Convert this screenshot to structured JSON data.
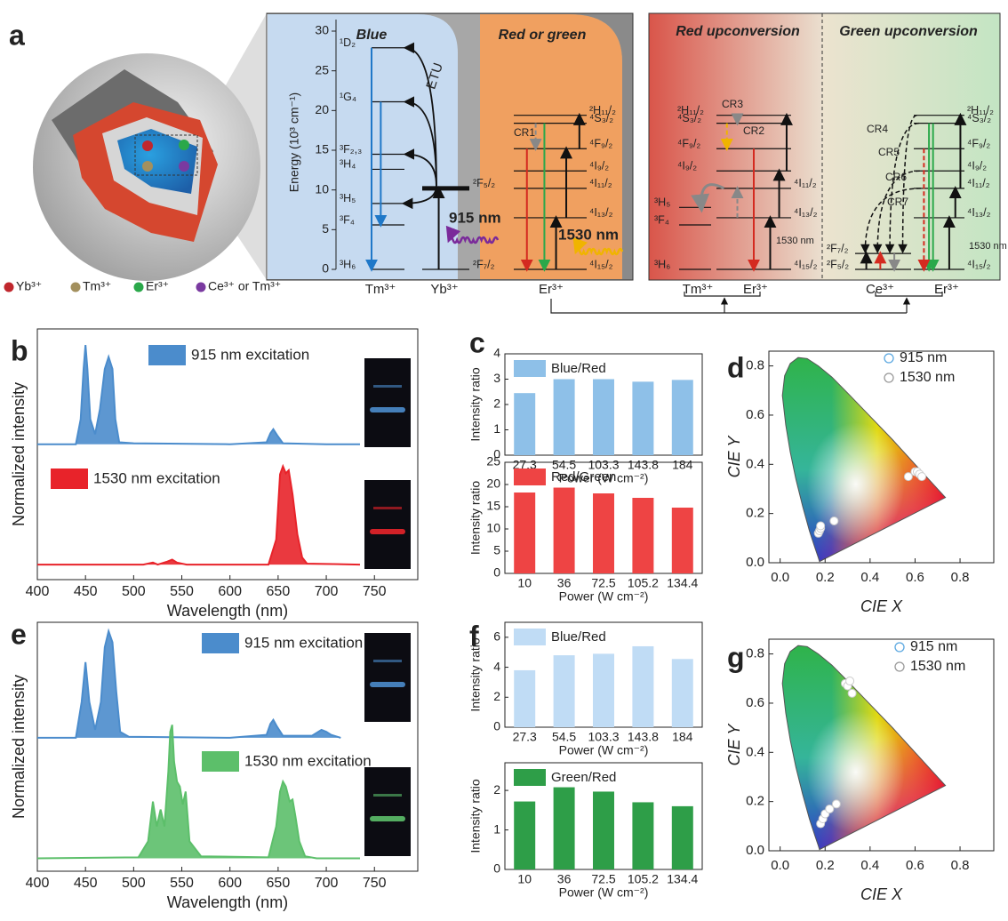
{
  "diagram": {
    "panel": "a",
    "legend": [
      {
        "label": "Yb³⁺",
        "color": "#c0272d"
      },
      {
        "label": "Tm³⁺",
        "color": "#a3905e"
      },
      {
        "label": "Er³⁺",
        "color": "#2aa84a"
      },
      {
        "label": "Ce³⁺ or Tm³⁺",
        "color": "#7a3aa0"
      }
    ],
    "energy_axis": {
      "label": "Energy (10³ cm⁻¹)",
      "ticks": [
        0,
        5,
        10,
        15,
        20,
        25,
        30
      ]
    },
    "sections": [
      {
        "title": "Blue"
      },
      {
        "title": "Red or green"
      },
      {
        "title": "Red upconversion"
      },
      {
        "title": "Green upconversion"
      }
    ],
    "ions": [
      {
        "label": "Tm³⁺",
        "levels": [
          {
            "label": "³H₆",
            "energy": 0
          },
          {
            "label": "³F₄",
            "energy": 5.6
          },
          {
            "label": "³H₅",
            "energy": 8.3
          },
          {
            "label": "³H₄",
            "energy": 12.6
          },
          {
            "label": "³F₂,₃",
            "energy": 14.5
          },
          {
            "label": "¹G₄",
            "energy": 21.1
          },
          {
            "label": "¹D₂",
            "energy": 27.9
          }
        ]
      },
      {
        "label": "Yb³⁺",
        "levels": [
          {
            "label": "²F₇/₂",
            "energy": 0
          },
          {
            "label": "²F₅/₂",
            "energy": 10.2
          }
        ]
      },
      {
        "label": "Er³⁺",
        "levels": [
          {
            "label": "⁴I₁₅/₂",
            "energy": 0
          },
          {
            "label": "⁴I₁₃/₂",
            "energy": 6.5
          },
          {
            "label": "⁴I₁₁/₂",
            "energy": 10.2
          },
          {
            "label": "⁴I₉/₂",
            "energy": 12.4
          },
          {
            "label": "⁴F₉/₂",
            "energy": 15.2
          },
          {
            "label": "⁴S₃/₂",
            "energy": 18.4
          },
          {
            "label": "²H₁₁/₂",
            "energy": 19.4
          }
        ]
      },
      {
        "label": "Tm³⁺",
        "levels": [
          {
            "label": "³H₆",
            "energy": 0
          },
          {
            "label": "³F₄",
            "energy": 5.6
          },
          {
            "label": "³H₅",
            "energy": 7.8
          }
        ]
      },
      {
        "label": "Er³⁺",
        "levels": [
          {
            "label": "⁴I₁₅/₂",
            "energy": 0
          },
          {
            "label": "⁴I₁₃/₂",
            "energy": 6.5
          },
          {
            "label": "⁴I₁₁/₂",
            "energy": 10.2
          },
          {
            "label": "⁴I₉/₂",
            "energy": 12.4
          },
          {
            "label": "⁴F₉/₂",
            "energy": 15.2
          },
          {
            "label": "⁴S₃/₂",
            "energy": 18.4
          },
          {
            "label": "²H₁₁/₂",
            "energy": 19.4
          }
        ]
      },
      {
        "label": "Ce³⁺",
        "levels": [
          {
            "label": "²F₅/₂",
            "energy": 0
          },
          {
            "label": "²F₇/₂",
            "energy": 2.0
          }
        ]
      },
      {
        "label": "Er³⁺",
        "levels": [
          {
            "label": "⁴I₁₅/₂",
            "energy": 0
          },
          {
            "label": "⁴I₁₃/₂",
            "energy": 6.5
          },
          {
            "label": "⁴I₁₁/₂",
            "energy": 10.2
          },
          {
            "label": "⁴I₉/₂",
            "energy": 12.4
          },
          {
            "label": "⁴F₉/₂",
            "energy": 15.2
          },
          {
            "label": "⁴S₃/₂",
            "energy": 18.4
          },
          {
            "label": "²H₁₁/₂",
            "energy": 19.4
          }
        ]
      }
    ],
    "annotations": [
      "ETU",
      "915 nm",
      "1530 nm",
      "1530 nm",
      "1530 nm"
    ],
    "cross_relaxations": [
      "CR1",
      "CR2",
      "CR3",
      "CR4",
      "CR5",
      "CR6",
      "CR7"
    ]
  },
  "chart_data": [
    {
      "type": "line",
      "panel": "b",
      "xlabel": "Wavelength (nm)",
      "ylabel": "Normalized intensity",
      "xlim": [
        400,
        795
      ],
      "xticks": [
        400,
        450,
        500,
        550,
        600,
        650,
        700,
        750
      ],
      "ylim": [
        0,
        2.5
      ],
      "series": [
        {
          "name": "915 nm excitation",
          "color": "#4b8ccc",
          "x": [
            400,
            440,
            445,
            448,
            450,
            452,
            455,
            460,
            465,
            470,
            474,
            478,
            481,
            485,
            500,
            600,
            638,
            642,
            645,
            649,
            655,
            700,
            735
          ],
          "values": [
            1.35,
            1.35,
            1.6,
            2.1,
            2.34,
            2.1,
            1.6,
            1.45,
            1.7,
            2.1,
            2.22,
            2.1,
            1.6,
            1.37,
            1.36,
            1.35,
            1.37,
            1.46,
            1.5,
            1.44,
            1.36,
            1.35,
            1.35
          ]
        },
        {
          "name": "1530 nm excitation",
          "color": "#e8232a",
          "x": [
            400,
            510,
            520,
            525,
            535,
            540,
            545,
            555,
            640,
            648,
            652,
            655,
            658,
            661,
            665,
            670,
            675,
            680,
            735
          ],
          "values": [
            0.15,
            0.15,
            0.17,
            0.15,
            0.18,
            0.2,
            0.17,
            0.15,
            0.15,
            0.4,
            1.05,
            1.13,
            1.06,
            1.09,
            0.85,
            0.45,
            0.22,
            0.16,
            0.15
          ]
        }
      ]
    },
    {
      "type": "bar",
      "panel": "c",
      "ylabel": "Intensity ratio",
      "xlabel": "Power (W cm⁻²)",
      "categories": [
        "27.3",
        "54.5",
        "103.3",
        "143.8",
        "184"
      ],
      "ylim": [
        0,
        4
      ],
      "yticks": [
        0,
        1,
        2,
        3,
        4
      ],
      "series": [
        {
          "name": "Blue/Red",
          "color": "#8ec0e8",
          "values": [
            2.45,
            3.0,
            3.0,
            2.9,
            2.97
          ]
        }
      ]
    },
    {
      "type": "bar",
      "ylabel": "Intensity ratio",
      "xlabel": "Power (W cm⁻²)",
      "categories": [
        "10",
        "36",
        "72.5",
        "105.2",
        "134.4"
      ],
      "ylim": [
        0,
        25
      ],
      "yticks": [
        0,
        5,
        10,
        15,
        20,
        25
      ],
      "series": [
        {
          "name": "Red/Green",
          "color": "#ee4444",
          "values": [
            18.2,
            19.3,
            18.0,
            17.0,
            14.8
          ]
        }
      ]
    },
    {
      "type": "scatter",
      "panel": "d",
      "xlabel": "CIE X",
      "ylabel": "CIE Y",
      "xlim": [
        -0.05,
        0.95
      ],
      "ylim": [
        0,
        0.86
      ],
      "xticks": [
        {
          "value": 0,
          "label": "0.0"
        },
        0.2,
        0.4,
        0.6,
        0.8
      ],
      "yticks": [
        {
          "value": 0,
          "label": "0.0"
        },
        0.2,
        0.4,
        0.6,
        0.8
      ],
      "series": [
        {
          "name": "915 nm",
          "color": "#5aa7e0",
          "x": [
            0.17,
            0.175,
            0.18,
            0.18,
            0.24
          ],
          "values": [
            0.12,
            0.13,
            0.14,
            0.15,
            0.17
          ]
        },
        {
          "name": "1530 nm",
          "color": "#999999",
          "x": [
            0.57,
            0.6,
            0.61,
            0.62,
            0.63
          ],
          "values": [
            0.35,
            0.37,
            0.37,
            0.36,
            0.35
          ]
        }
      ]
    },
    {
      "type": "line",
      "panel": "e",
      "xlabel": "Wavelength (nm)",
      "ylabel": "Normalized intensity",
      "xlim": [
        400,
        795
      ],
      "xticks": [
        400,
        450,
        500,
        550,
        600,
        650,
        700,
        750
      ],
      "ylim": [
        0,
        2.5
      ],
      "series": [
        {
          "name": "915 nm excitation",
          "color": "#4b8ccc",
          "x": [
            400,
            440,
            446,
            450,
            454,
            460,
            466,
            470,
            474,
            478,
            482,
            486,
            495,
            600,
            638,
            642,
            645,
            649,
            655,
            685,
            690,
            695,
            700,
            705,
            715
          ],
          "values": [
            1.34,
            1.34,
            1.7,
            2.1,
            1.7,
            1.42,
            1.7,
            2.25,
            2.41,
            2.3,
            1.8,
            1.4,
            1.35,
            1.34,
            1.37,
            1.48,
            1.52,
            1.45,
            1.36,
            1.36,
            1.39,
            1.42,
            1.4,
            1.37,
            1.34
          ]
        },
        {
          "name": "1530 nm excitation",
          "color": "#5cbf6a",
          "x": [
            400,
            505,
            515,
            520,
            524,
            528,
            532,
            536,
            538,
            540,
            542,
            545,
            548,
            551,
            554,
            558,
            570,
            640,
            648,
            652,
            655,
            658,
            662,
            665,
            668,
            672,
            678,
            690,
            735
          ],
          "values": [
            0.13,
            0.14,
            0.3,
            0.7,
            0.45,
            0.62,
            0.45,
            1.0,
            1.4,
            1.47,
            1.1,
            0.9,
            0.85,
            0.67,
            0.8,
            0.3,
            0.15,
            0.14,
            0.45,
            0.8,
            0.9,
            0.85,
            0.7,
            0.72,
            0.55,
            0.3,
            0.15,
            0.13,
            0.13
          ]
        }
      ]
    },
    {
      "type": "bar",
      "panel": "f",
      "ylabel": "Intensity ratio",
      "xlabel": "Power (W cm⁻²)",
      "categories": [
        "27.3",
        "54.5",
        "103.3",
        "143.8",
        "184"
      ],
      "ylim": [
        0,
        7
      ],
      "yticks": [
        0,
        2,
        4,
        6
      ],
      "series": [
        {
          "name": "Blue/Red",
          "color": "#c0dcf5",
          "values": [
            3.8,
            4.8,
            4.9,
            5.4,
            4.55
          ]
        }
      ]
    },
    {
      "type": "bar",
      "ylabel": "Intensity ratio",
      "xlabel": "Power (W cm⁻²)",
      "categories": [
        "10",
        "36",
        "72.5",
        "105.2",
        "134.4"
      ],
      "ylim": [
        0,
        2.7
      ],
      "yticks": [
        0,
        1,
        2
      ],
      "series": [
        {
          "name": "Green/Red",
          "color": "#2e9e48",
          "values": [
            1.72,
            2.08,
            1.97,
            1.7,
            1.6
          ]
        }
      ]
    },
    {
      "type": "scatter",
      "panel": "g",
      "xlabel": "CIE X",
      "ylabel": "CIE Y",
      "xlim": [
        -0.05,
        0.95
      ],
      "ylim": [
        0,
        0.86
      ],
      "xticks": [
        {
          "value": 0,
          "label": "0.0"
        },
        0.2,
        0.4,
        0.6,
        0.8
      ],
      "yticks": [
        {
          "value": 0,
          "label": "0.0"
        },
        0.2,
        0.4,
        0.6,
        0.8
      ],
      "series": [
        {
          "name": "915 nm",
          "color": "#5aa7e0",
          "x": [
            0.18,
            0.19,
            0.2,
            0.22,
            0.25
          ],
          "values": [
            0.11,
            0.13,
            0.15,
            0.17,
            0.19
          ]
        },
        {
          "name": "1530 nm",
          "color": "#999999",
          "x": [
            0.29,
            0.3,
            0.31,
            0.32
          ],
          "values": [
            0.68,
            0.67,
            0.69,
            0.64
          ]
        }
      ]
    }
  ]
}
